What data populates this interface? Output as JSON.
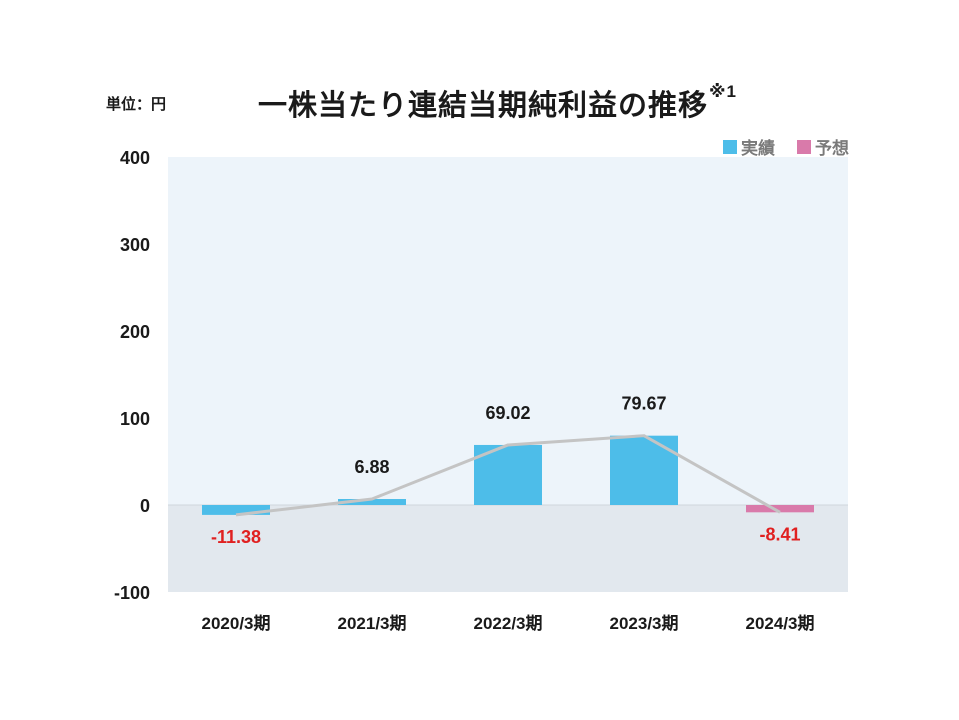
{
  "unit_label": "単位：円",
  "title": "一株当たり連結当期純利益の推移",
  "title_note": "※1",
  "legend": [
    {
      "label": "実績",
      "color": "#4dbde9"
    },
    {
      "label": "予想",
      "color": "#d97aaa"
    }
  ],
  "colors": {
    "positive_label": "#1a1a1a",
    "negative_label": "#e02020",
    "line": "#c4c4c4",
    "plot_bg_top": "#edf4fa",
    "plot_bg_bottom": "#e2e8ee"
  },
  "chart_data": {
    "type": "bar",
    "categories": [
      "2020/3期",
      "2021/3期",
      "2022/3期",
      "2023/3期",
      "2024/3期"
    ],
    "series": [
      {
        "name": "実績",
        "values": [
          -11.38,
          6.88,
          69.02,
          79.67,
          null
        ]
      },
      {
        "name": "予想",
        "values": [
          null,
          null,
          null,
          null,
          -8.41
        ]
      }
    ],
    "line_overlay": [
      -11.38,
      6.88,
      69.02,
      79.67,
      -8.41
    ],
    "data_labels": [
      "-11.38",
      "6.88",
      "69.02",
      "79.67",
      "-8.41"
    ],
    "yticks": [
      "400",
      "300",
      "200",
      "100",
      "0",
      "-100"
    ],
    "ylim": [
      -100,
      400
    ],
    "legend_position": "top-right"
  }
}
